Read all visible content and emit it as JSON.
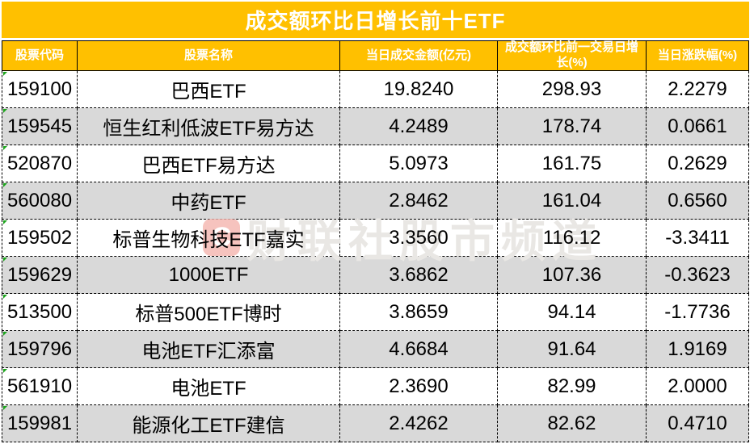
{
  "chart_data": {
    "type": "table",
    "title": "成交额环比日增长前十ETF",
    "columns": [
      "股票代码",
      "股票名称",
      "当日成交金额(亿元)",
      "成交额环比前一交易日增长(%)",
      "当日涨跌幅(%)"
    ],
    "rows": [
      {
        "code": "159100",
        "name": "巴西ETF",
        "amount": "19.8240",
        "growth": "298.93",
        "change": "2.2279"
      },
      {
        "code": "159545",
        "name": "恒生红利低波ETF易方达",
        "amount": "4.2489",
        "growth": "178.74",
        "change": "0.0661"
      },
      {
        "code": "520870",
        "name": "巴西ETF易方达",
        "amount": "5.0973",
        "growth": "161.75",
        "change": "0.2629"
      },
      {
        "code": "560080",
        "name": "中药ETF",
        "amount": "2.8462",
        "growth": "161.04",
        "change": "0.6560"
      },
      {
        "code": "159502",
        "name": "标普生物科技ETF嘉实",
        "amount": "3.3560",
        "growth": "116.12",
        "change": "-3.3411"
      },
      {
        "code": "159629",
        "name": "1000ETF",
        "amount": "3.6862",
        "growth": "107.36",
        "change": "-0.3623"
      },
      {
        "code": "513500",
        "name": "标普500ETF博时",
        "amount": "3.8659",
        "growth": "94.14",
        "change": "-1.7736"
      },
      {
        "code": "159796",
        "name": "电池ETF汇添富",
        "amount": "4.6684",
        "growth": "91.64",
        "change": "1.9169"
      },
      {
        "code": "561910",
        "name": "电池ETF",
        "amount": "2.3690",
        "growth": "82.99",
        "change": "2.0000"
      },
      {
        "code": "159981",
        "name": "能源化工ETF建信",
        "amount": "2.4262",
        "growth": "82.62",
        "change": "0.4710"
      }
    ]
  },
  "watermark": {
    "logo": "C",
    "text": "财联社股市频道"
  },
  "colors": {
    "accent_orange": "#FFC000",
    "alt_row_gray": "#D9D9D9",
    "header_text": "#FFFFFF",
    "body_text": "#000000",
    "flag_green": "#1CA41C",
    "watermark_logo_pink": "#F5B5AE",
    "watermark_text_gray": "#E9E7E4"
  }
}
